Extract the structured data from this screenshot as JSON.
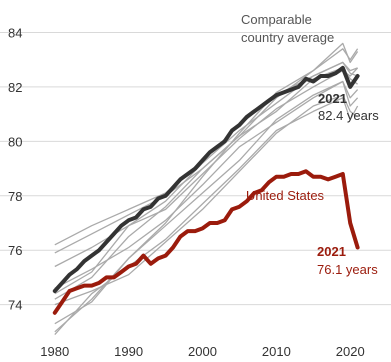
{
  "chart_data": {
    "type": "line",
    "title": "",
    "xlabel": "",
    "ylabel": "",
    "xlim": [
      1978,
      2022
    ],
    "ylim": [
      72.7,
      84.9
    ],
    "x_ticks": [
      1980,
      1990,
      2000,
      2010,
      2020
    ],
    "y_ticks": [
      74,
      76,
      78,
      80,
      82,
      84
    ],
    "grid": "horizontal",
    "legend": "none",
    "colors": {
      "gridline": "#d9d9d9",
      "comparable_countries": "#aaaaaa",
      "comparable_average": "#333333",
      "united_states": "#9b1b0c",
      "us_annotation": "#9b1b0c",
      "avg_annotation": "#333333",
      "country_label": "#555555"
    },
    "annotations": {
      "comparable_label_line1": "Comparable",
      "comparable_label_line2": "country average",
      "avg_year": "2021",
      "avg_value": "82.4 years",
      "us_label": "United States",
      "us_year": "2021",
      "us_value": "76.1 years"
    },
    "series": [
      {
        "name": "Comparable country average",
        "x": [
          1980,
          1981,
          1982,
          1983,
          1984,
          1985,
          1986,
          1987,
          1988,
          1989,
          1990,
          1991,
          1992,
          1993,
          1994,
          1995,
          1996,
          1997,
          1998,
          1999,
          2000,
          2001,
          2002,
          2003,
          2004,
          2005,
          2006,
          2007,
          2008,
          2009,
          2010,
          2011,
          2012,
          2013,
          2014,
          2015,
          2016,
          2017,
          2018,
          2019,
          2020,
          2021
        ],
        "values": [
          74.5,
          74.8,
          75.1,
          75.3,
          75.6,
          75.8,
          76.0,
          76.3,
          76.6,
          76.9,
          77.1,
          77.2,
          77.5,
          77.6,
          77.9,
          78.0,
          78.3,
          78.6,
          78.8,
          79.0,
          79.3,
          79.6,
          79.8,
          80.0,
          80.4,
          80.6,
          80.9,
          81.1,
          81.3,
          81.5,
          81.7,
          81.8,
          81.9,
          82.0,
          82.3,
          82.2,
          82.4,
          82.4,
          82.5,
          82.7,
          82.0,
          82.4
        ]
      },
      {
        "name": "United States",
        "x": [
          1980,
          1981,
          1982,
          1983,
          1984,
          1985,
          1986,
          1987,
          1988,
          1989,
          1990,
          1991,
          1992,
          1993,
          1994,
          1995,
          1996,
          1997,
          1998,
          1999,
          2000,
          2001,
          2002,
          2003,
          2004,
          2005,
          2006,
          2007,
          2008,
          2009,
          2010,
          2011,
          2012,
          2013,
          2014,
          2015,
          2016,
          2017,
          2018,
          2019,
          2020,
          2021
        ],
        "values": [
          73.7,
          74.1,
          74.5,
          74.6,
          74.7,
          74.7,
          74.8,
          75.0,
          75.0,
          75.2,
          75.4,
          75.5,
          75.8,
          75.5,
          75.7,
          75.8,
          76.1,
          76.5,
          76.7,
          76.7,
          76.8,
          77.0,
          77.0,
          77.1,
          77.5,
          77.6,
          77.8,
          78.1,
          78.2,
          78.5,
          78.7,
          78.7,
          78.8,
          78.8,
          78.9,
          78.7,
          78.7,
          78.6,
          78.7,
          78.8,
          77.0,
          76.1
        ]
      },
      {
        "x": [
          1980,
          1985,
          1990,
          1995,
          2000,
          2005,
          2010,
          2015,
          2019,
          2020,
          2021
        ],
        "values": [
          75.9,
          76.6,
          77.3,
          78.0,
          79.0,
          80.2,
          81.6,
          82.6,
          83.4,
          83.0,
          83.4
        ]
      },
      {
        "x": [
          1980,
          1985,
          1990,
          1995,
          2000,
          2005,
          2010,
          2015,
          2019,
          2020,
          2021
        ],
        "values": [
          73.0,
          74.2,
          75.7,
          77.0,
          78.7,
          80.3,
          81.8,
          82.6,
          83.6,
          82.9,
          83.3
        ]
      },
      {
        "x": [
          1980,
          1985,
          1990,
          1995,
          2000,
          2005,
          2010,
          2015,
          2019,
          2020,
          2021
        ],
        "values": [
          76.2,
          76.9,
          77.5,
          78.1,
          79.3,
          80.6,
          81.7,
          82.4,
          82.9,
          82.6,
          82.7
        ]
      },
      {
        "x": [
          1980,
          1985,
          1990,
          1995,
          2000,
          2005,
          2010,
          2015,
          2019,
          2020,
          2021
        ],
        "values": [
          74.4,
          75.2,
          76.9,
          77.8,
          79.2,
          80.4,
          81.4,
          82.4,
          82.9,
          82.5,
          82.4
        ]
      },
      {
        "x": [
          1980,
          1985,
          1990,
          1995,
          2000,
          2005,
          2010,
          2015,
          2019,
          2020,
          2021
        ],
        "values": [
          74.2,
          75.0,
          76.5,
          77.6,
          79.0,
          80.2,
          81.1,
          82.3,
          82.7,
          82.3,
          82.1
        ]
      },
      {
        "x": [
          1980,
          1985,
          1990,
          1995,
          2000,
          2005,
          2010,
          2015,
          2019,
          2020,
          2021
        ],
        "values": [
          74.6,
          75.3,
          76.1,
          77.1,
          78.4,
          79.8,
          80.7,
          81.6,
          82.2,
          81.6,
          81.9
        ]
      },
      {
        "x": [
          1980,
          1985,
          1990,
          1995,
          2000,
          2005,
          2010,
          2015,
          2019,
          2020,
          2021
        ],
        "values": [
          73.3,
          74.1,
          75.7,
          76.9,
          78.1,
          79.3,
          80.8,
          81.7,
          82.2,
          81.3,
          81.6
        ]
      },
      {
        "x": [
          1980,
          1985,
          1990,
          1995,
          2000,
          2005,
          2010,
          2015,
          2019,
          2020,
          2021
        ],
        "values": [
          72.9,
          74.4,
          75.4,
          76.4,
          77.7,
          79.0,
          80.4,
          81.1,
          81.6,
          80.8,
          81.3
        ]
      },
      {
        "x": [
          1980,
          1985,
          1990,
          1995,
          2000,
          2005,
          2010,
          2015,
          2019,
          2020,
          2021
        ],
        "values": [
          74.0,
          74.5,
          75.1,
          76.3,
          77.5,
          78.9,
          80.3,
          81.3,
          81.7,
          81.1,
          80.9
        ]
      },
      {
        "x": [
          1980,
          1985,
          1990,
          1995,
          2000,
          2005,
          2010,
          2015,
          2019,
          2020,
          2021
        ],
        "values": [
          75.4,
          76.1,
          76.9,
          77.5,
          78.8,
          80.1,
          81.2,
          82.0,
          82.6,
          82.4,
          82.7
        ]
      }
    ]
  }
}
